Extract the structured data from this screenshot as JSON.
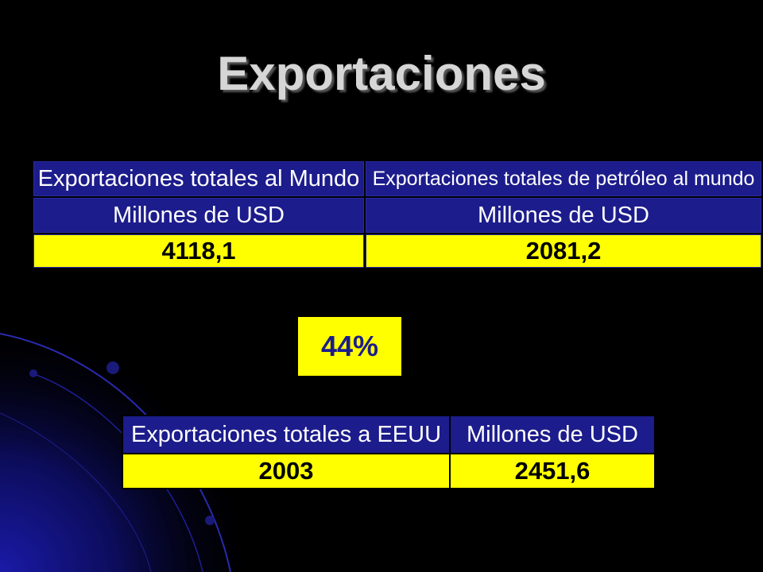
{
  "slide": {
    "title": "Exportaciones",
    "background_color": "#000000",
    "accent_color": "#1c1c8c",
    "highlight_color": "#ffff00"
  },
  "table_world": {
    "headers": [
      "Exportaciones totales al Mundo",
      "Exportaciones totales de petróleo al mundo"
    ],
    "units": [
      "Millones de USD",
      "Millones de USD"
    ],
    "values": [
      "4118,1",
      "2081,2"
    ]
  },
  "percentage": "44%",
  "table_usa": {
    "headers": [
      "Exportaciones totales a EEUU",
      "Millones de USD"
    ],
    "values": [
      "2003",
      "2451,6"
    ]
  }
}
